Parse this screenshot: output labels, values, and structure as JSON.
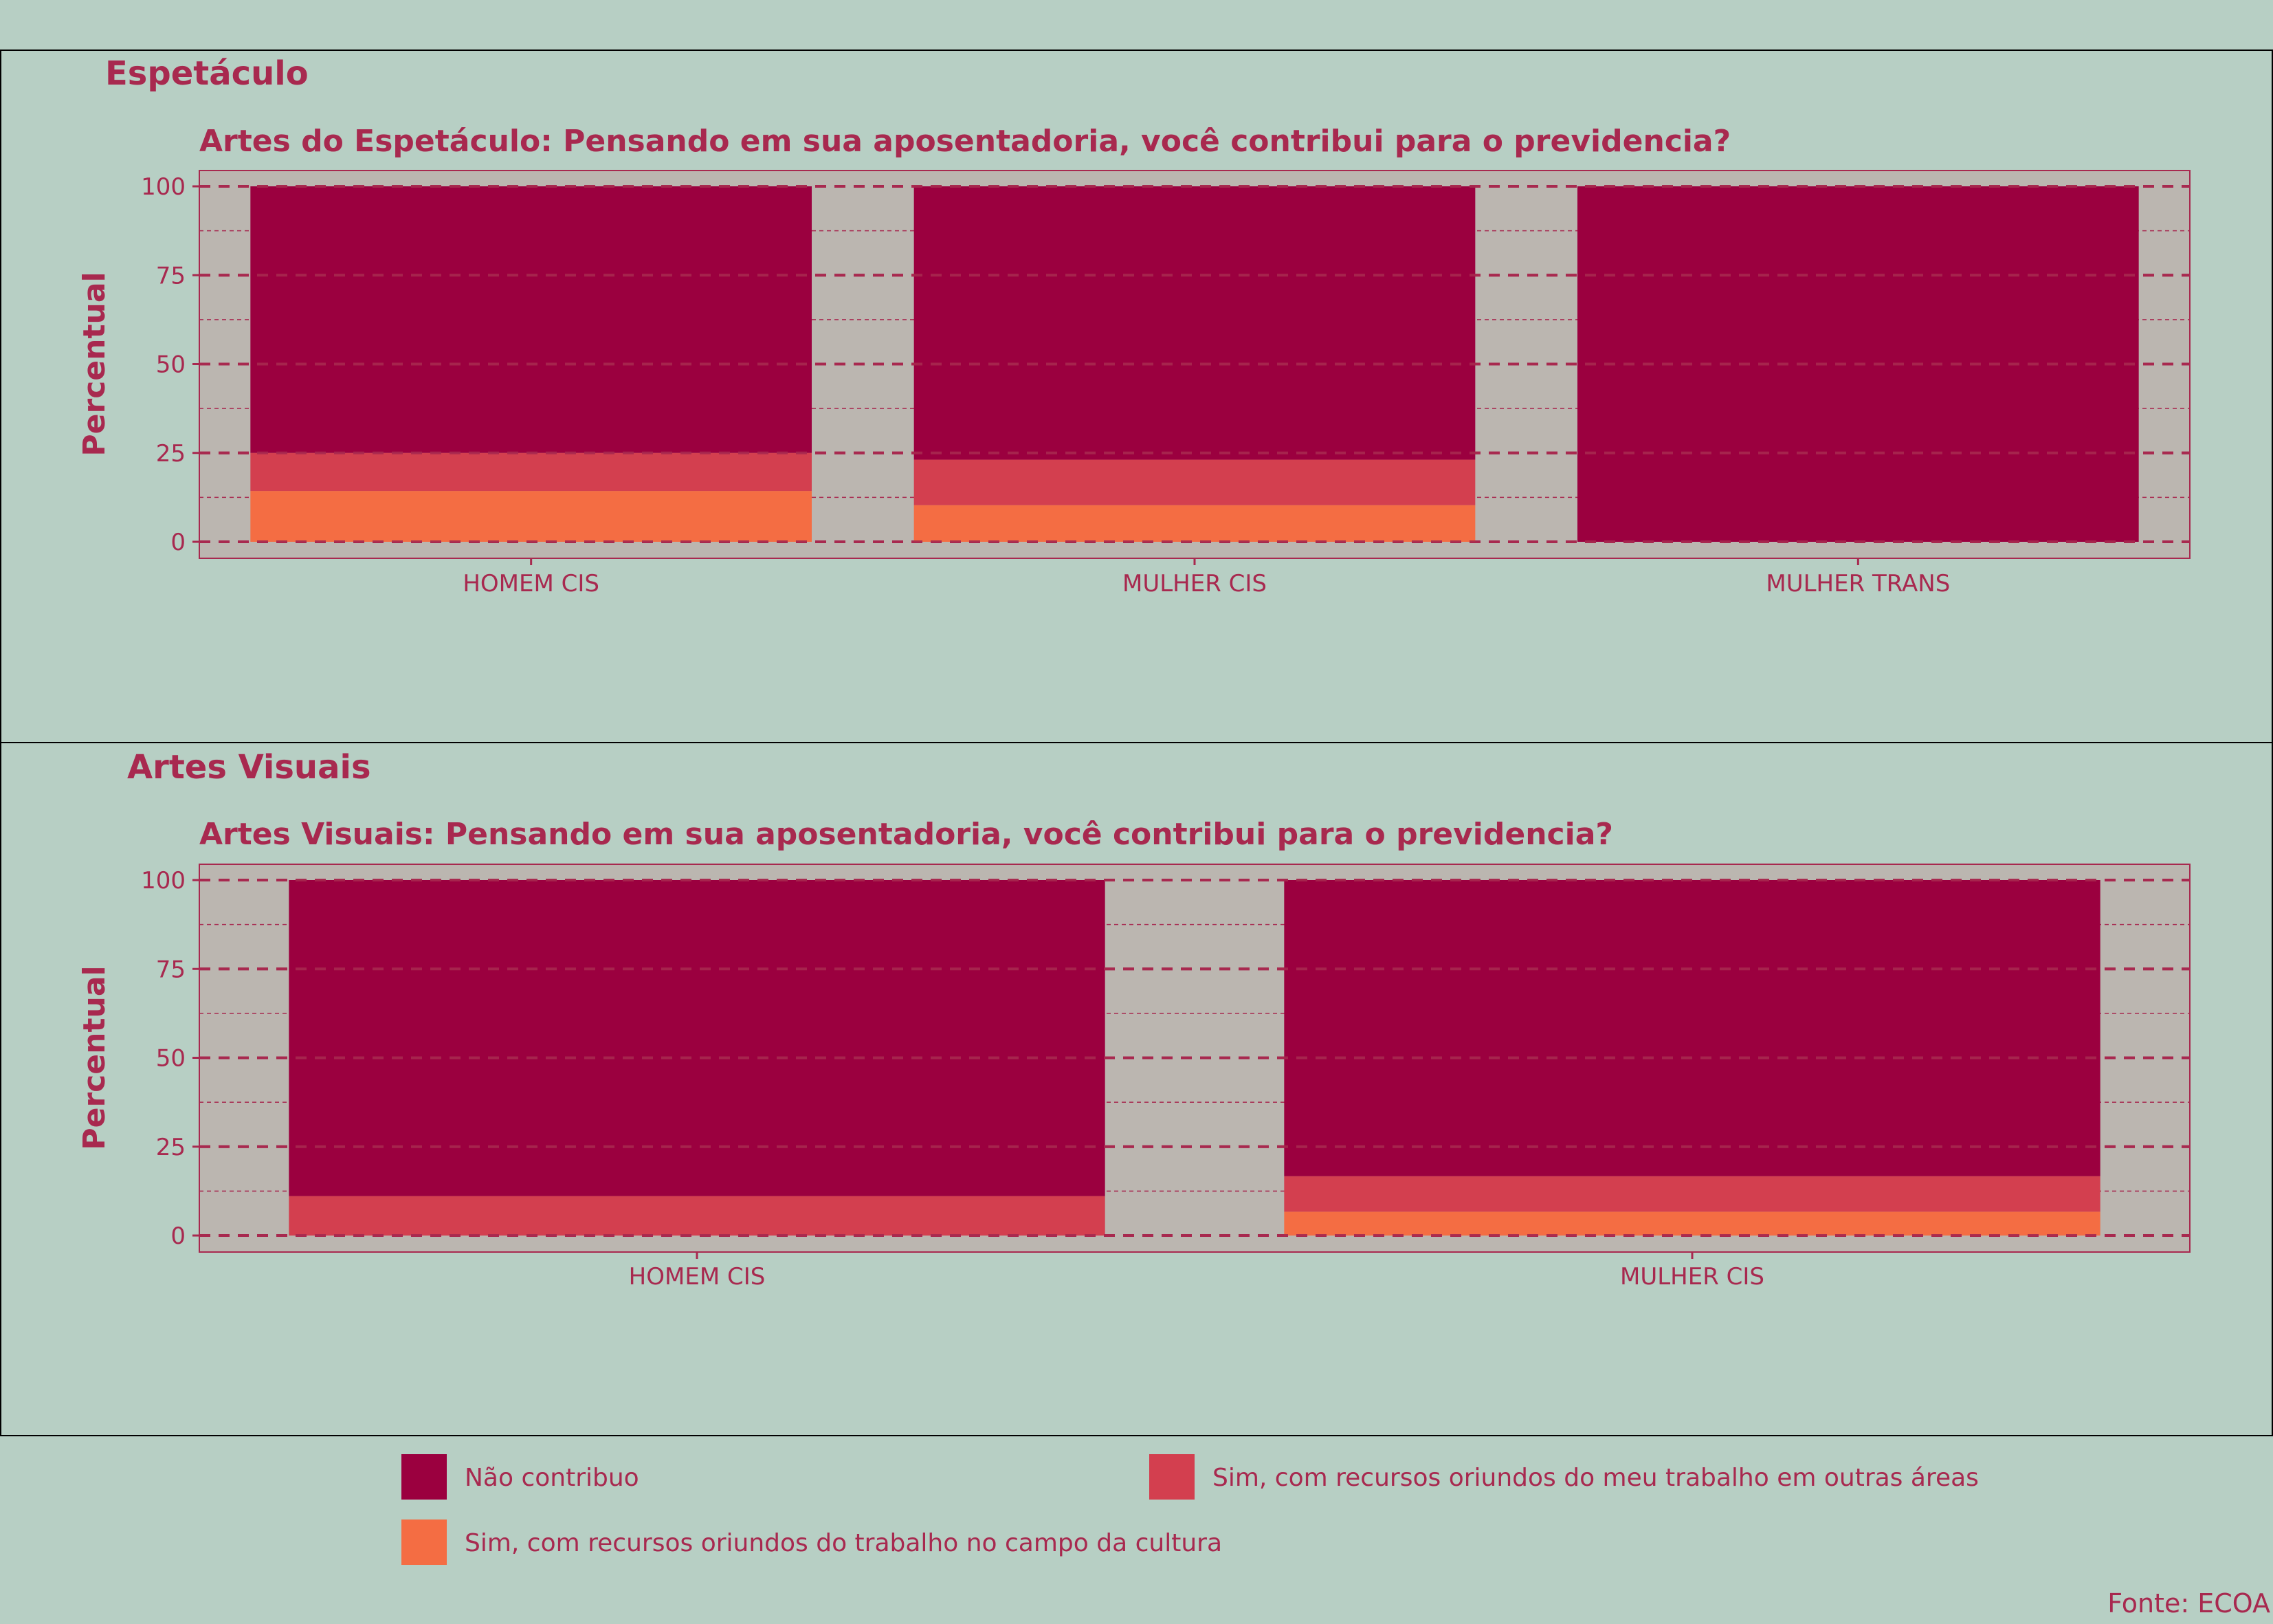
{
  "colors": {
    "background": "#b7cfc4",
    "panel_bg": "#bbb6b0",
    "text": "#a8294f",
    "grid": "#a8294f",
    "frame": "#000000"
  },
  "legend": {
    "items": [
      {
        "label": "Não contribuo",
        "color": "#9b003f"
      },
      {
        "label": "Sim, com recursos oriundos do meu trabalho em outras áreas",
        "color": "#d33f4f"
      },
      {
        "label": "Sim, com recursos oriundos do trabalho no campo da cultura",
        "color": "#f46d43"
      }
    ]
  },
  "source": "Fonte: ECOA",
  "chart_data": [
    {
      "type": "bar",
      "stacked": true,
      "facet_title": "Espetáculo",
      "title": "Artes do Espetáculo: Pensando em sua aposentadoria, você contribui para o previdencia?",
      "xlabel": "",
      "ylabel": "Percentual",
      "ylim": [
        0,
        100
      ],
      "yticks": [
        0,
        25,
        50,
        75,
        100
      ],
      "grid": true,
      "legend_position": "bottom",
      "categories": [
        "HOMEM CIS",
        "MULHER CIS",
        "MULHER TRANS"
      ],
      "series": [
        {
          "name": "Sim, com recursos oriundos do trabalho no campo da cultura",
          "values": [
            14.3,
            10.3,
            0
          ]
        },
        {
          "name": "Sim, com recursos oriundos do meu trabalho em outras áreas",
          "values": [
            10.7,
            12.8,
            0
          ]
        },
        {
          "name": "Não contribuo",
          "values": [
            75.0,
            76.9,
            100
          ]
        }
      ]
    },
    {
      "type": "bar",
      "stacked": true,
      "facet_title": "Artes Visuais",
      "title": "Artes Visuais: Pensando em sua aposentadoria, você contribui para o previdencia?",
      "xlabel": "",
      "ylabel": "Percentual",
      "ylim": [
        0,
        100
      ],
      "yticks": [
        0,
        25,
        50,
        75,
        100
      ],
      "grid": true,
      "legend_position": "bottom",
      "categories": [
        "HOMEM CIS",
        "MULHER CIS"
      ],
      "series": [
        {
          "name": "Sim, com recursos oriundos do trabalho no campo da cultura",
          "values": [
            0,
            6.7
          ]
        },
        {
          "name": "Sim, com recursos oriundos do meu trabalho em outras áreas",
          "values": [
            11.1,
            10.0
          ]
        },
        {
          "name": "Não contribuo",
          "values": [
            88.9,
            83.3
          ]
        }
      ]
    }
  ]
}
